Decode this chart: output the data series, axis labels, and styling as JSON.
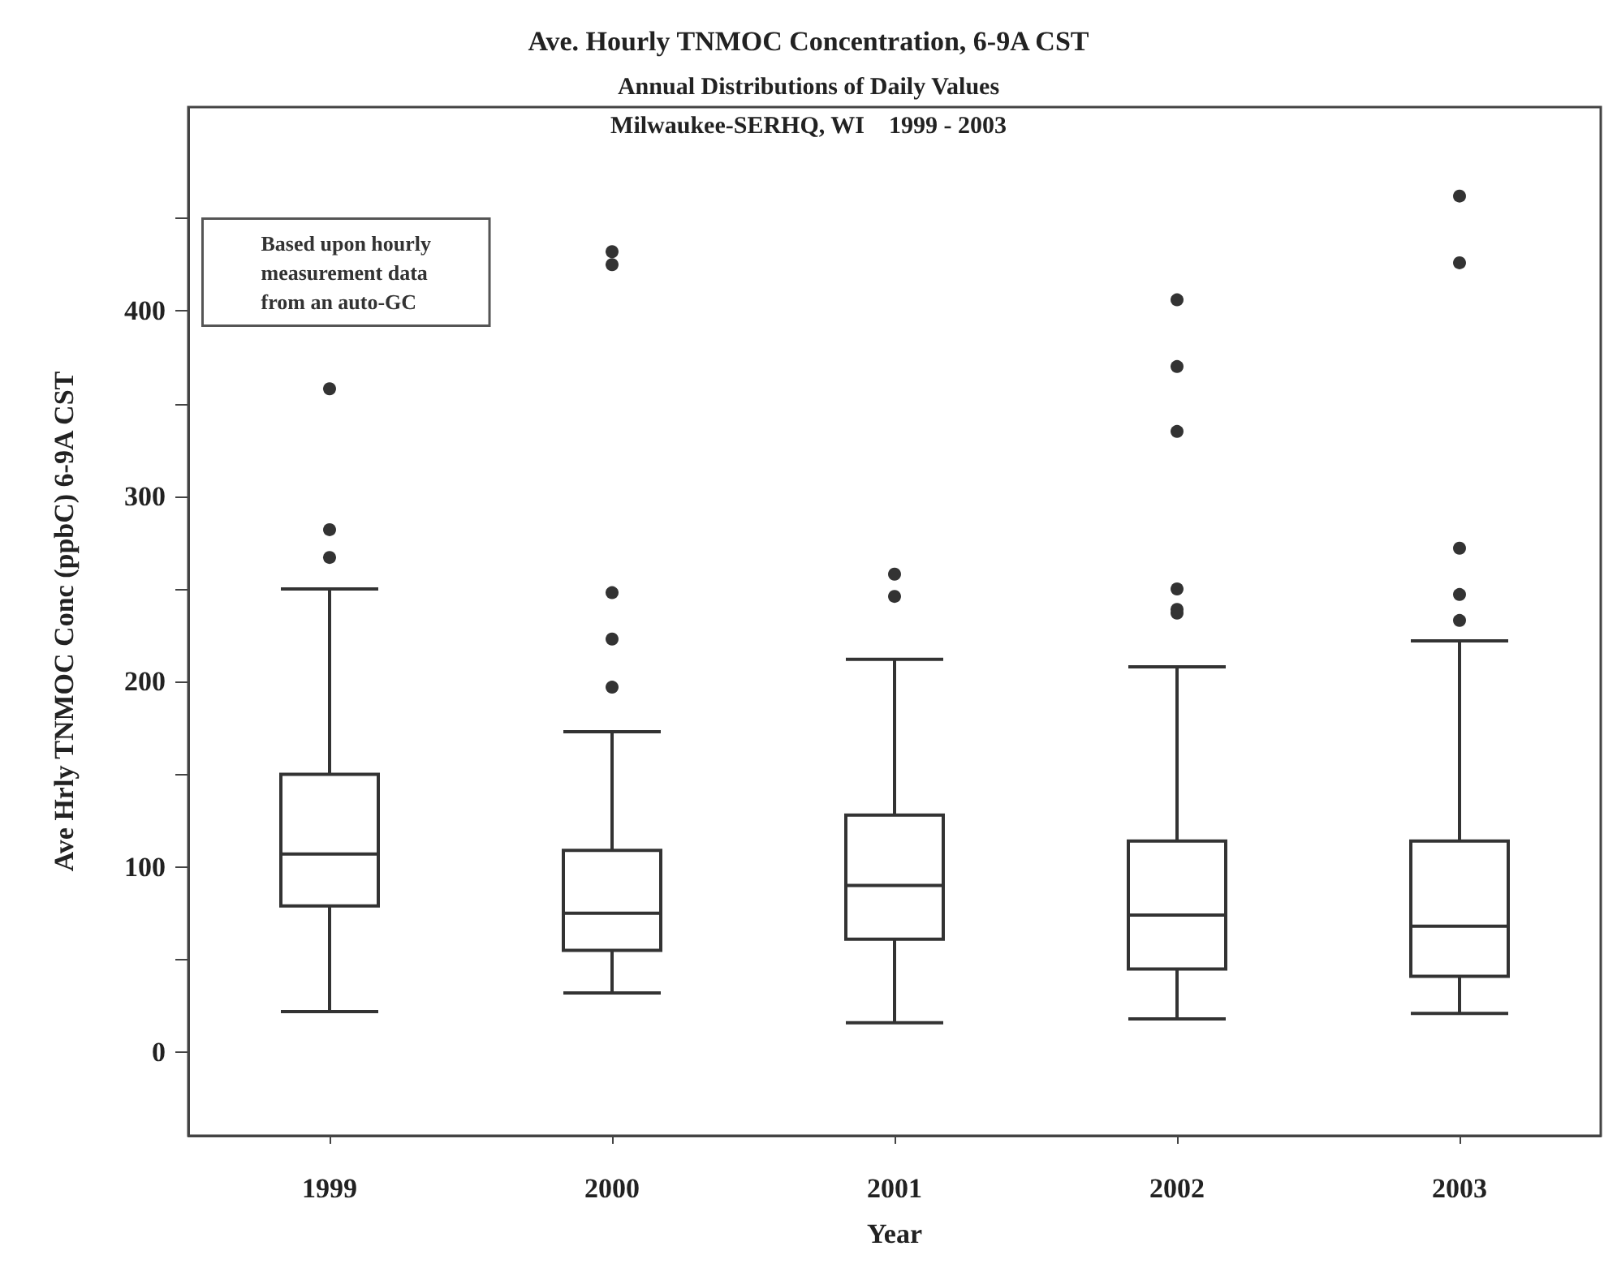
{
  "chart_data": {
    "type": "box",
    "title": "Ave. Hourly TNMOC Concentration, 6-9A CST",
    "subtitle": "Annual Distributions of Daily Values\nMilwaukee-SERHQ, WI    1999 - 2003",
    "xlabel": "Year",
    "ylabel": "Ave Hrly TNMOC Conc (ppbC) 6-9A CST",
    "annotations": [
      "Based upon hourly\nmeasurement data\nfrom an auto-GC"
    ],
    "categories": [
      "1999",
      "2000",
      "2001",
      "2002",
      "2003"
    ],
    "boxes": [
      {
        "low": 22,
        "q1": 79,
        "median": 107,
        "q3": 150,
        "high": 250,
        "outliers": [
          267,
          282,
          358
        ]
      },
      {
        "low": 32,
        "q1": 55,
        "median": 75,
        "q3": 109,
        "high": 173,
        "outliers": [
          197,
          223,
          248,
          425,
          432
        ]
      },
      {
        "low": 16,
        "q1": 61,
        "median": 90,
        "q3": 128,
        "high": 212,
        "outliers": [
          246,
          258
        ]
      },
      {
        "low": 18,
        "q1": 45,
        "median": 74,
        "q3": 114,
        "high": 208,
        "outliers": [
          237,
          239,
          250,
          335,
          370,
          406
        ]
      },
      {
        "low": 21,
        "q1": 41,
        "median": 68,
        "q3": 114,
        "high": 222,
        "outliers": [
          233,
          247,
          272,
          426,
          462
        ]
      }
    ],
    "color": "#333333",
    "ylim": [
      -45,
      510
    ],
    "yticks": [
      0,
      {
        "value": 50,
        "label": null
      },
      100,
      {
        "value": 150,
        "label": null
      },
      200,
      {
        "value": 250,
        "label": null
      },
      300,
      {
        "value": 350,
        "label": null
      },
      400,
      {
        "value": 450,
        "label": null
      }
    ],
    "grid": false
  }
}
